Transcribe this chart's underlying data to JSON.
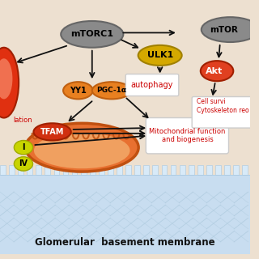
{
  "bg_color": "#ede0d0",
  "membrane_bg": "#c8ddf0",
  "membrane_battlement": "#d8eaf8",
  "membrane_edge": "#a8c8e0",
  "title_text": "Glomerular  basement membrane",
  "mtorc1_label": "mTORC1",
  "mtor_label": "mTOR",
  "ulk1_label": "ULK1",
  "akt_label": "Akt",
  "yy1_label": "YY1",
  "pgc1a_label": "PGC-1α",
  "tfam_label": "TFAM",
  "autophagy_label": "autophagy",
  "mito_label": "Mitochondrial function\nand biogenesis",
  "cell_survival_label": "Cell survi\nCytoskeleton reo",
  "translation_label": "lation",
  "arrow_color": "#111111",
  "red_text_color": "#cc0000",
  "gray_node": "#8a8a8a",
  "gray_edge": "#666666",
  "orange_node": "#e88020",
  "orange_edge": "#c06010",
  "gold_node": "#d4a800",
  "gold_edge": "#a08000",
  "red_node": "#d03010",
  "red_edge": "#a02000",
  "red_node2": "#e04020",
  "yg_node": "#c8d400",
  "yg_edge": "#a0aa00",
  "mito_outer": "#e87030",
  "mito_inner": "#f0a060",
  "mito_edge": "#c05010",
  "left_blob_outer": "#e03010",
  "left_blob_inner": "#f07050",
  "white_box": "#ffffff",
  "box_edge": "#cccccc"
}
